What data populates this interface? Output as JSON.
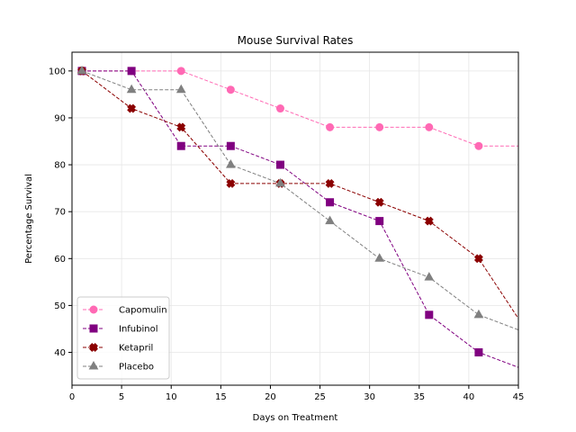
{
  "chart_data": {
    "type": "line",
    "title": "Mouse Survival Rates",
    "xlabel": "Days on Treatment",
    "ylabel": "Percentage Survival",
    "xlim": [
      0,
      45
    ],
    "ylim": [
      33,
      104
    ],
    "xticks": [
      0,
      5,
      10,
      15,
      20,
      25,
      30,
      35,
      40,
      45
    ],
    "yticks": [
      40,
      50,
      60,
      70,
      80,
      90,
      100
    ],
    "grid": true,
    "legend_position": "lower-left",
    "x": [
      1,
      6,
      11,
      16,
      21,
      26,
      31,
      36,
      41,
      46
    ],
    "series": [
      {
        "name": "Capomulin",
        "color": "#ff69b4",
        "marker": "circle",
        "values": [
          100,
          100,
          100,
          96,
          92,
          88,
          88,
          88,
          84,
          84
        ]
      },
      {
        "name": "Infubinol",
        "color": "#800080",
        "marker": "square",
        "values": [
          100,
          100,
          84,
          84,
          80,
          72,
          68,
          48,
          40,
          36
        ]
      },
      {
        "name": "Ketapril",
        "color": "#8b0000",
        "marker": "x",
        "values": [
          100,
          92,
          88,
          76,
          76,
          76,
          72,
          68,
          60,
          44
        ]
      },
      {
        "name": "Placebo",
        "color": "#808080",
        "marker": "triangle",
        "values": [
          100,
          96,
          96,
          80,
          76,
          68,
          60,
          56,
          48,
          44
        ]
      }
    ]
  }
}
